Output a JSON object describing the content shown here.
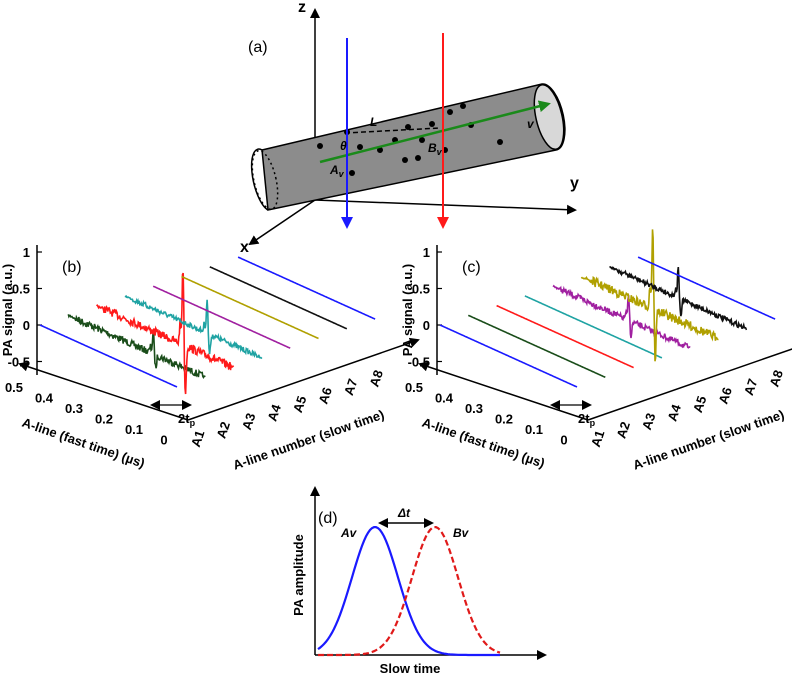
{
  "panel_a": {
    "label": "(a)",
    "z_axis": "z",
    "y_axis": "y",
    "x_axis": "x",
    "length": "L",
    "angle": "θ",
    "point_a": {
      "main": "A",
      "sub": "v"
    },
    "point_b": {
      "main": "B",
      "sub": "v"
    },
    "velocity": "v"
  },
  "panel_b": {
    "label": "(b)",
    "signal_label": "PA signal (a.u.)",
    "signal_ticks": [
      "1",
      "0.5",
      "0",
      "-0.5"
    ],
    "fast_label": "A-line (fast time) (µs)",
    "fast_ticks": [
      "0.5",
      "0.4",
      "0.3",
      "0.2",
      "0.1",
      "0"
    ],
    "slow_label": "A-line number (slow time)",
    "slow_ticks": [
      "A1",
      "A2",
      "A3",
      "A4",
      "A5",
      "A6",
      "A7",
      "A8"
    ],
    "pulse": {
      "main": "2t",
      "sub": "p"
    }
  },
  "panel_c": {
    "label": "(c)",
    "signal_label": "PA signal (a.u.)",
    "signal_ticks": [
      "1",
      "0.5",
      "0",
      "-0.5"
    ],
    "fast_label": "A-line (fast time) (µs)",
    "fast_ticks": [
      "0.5",
      "0.4",
      "0.3",
      "0.2",
      "0.1",
      "0"
    ],
    "slow_label": "A-line number (slow time)",
    "slow_ticks": [
      "A1",
      "A2",
      "A3",
      "A4",
      "A5",
      "A6",
      "A7",
      "A8"
    ],
    "pulse": {
      "main": "2t",
      "sub": "p"
    }
  },
  "panel_d": {
    "label": "(d)",
    "curve_a": "Av",
    "curve_b": "Bv",
    "delay": "Δt",
    "y_label": "PA amplitude",
    "x_label": "Slow time"
  }
}
